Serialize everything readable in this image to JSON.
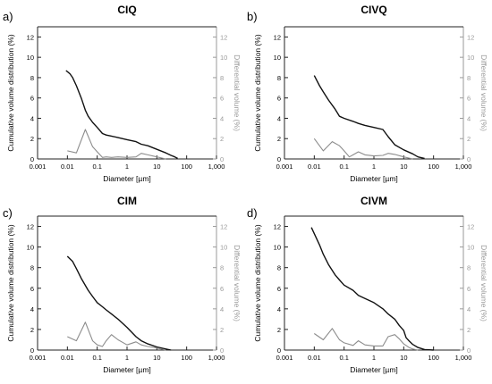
{
  "chart_data": [
    {
      "type": "line",
      "panel_letter": "a)",
      "title": "CIQ",
      "xlabel": "Diameter [µm]",
      "ylabel": "Cumulative volume distribution (%)",
      "y2label": "Differential volume (%)",
      "xscale": "log",
      "xlim": [
        0.001,
        1000
      ],
      "ylim": [
        0,
        13
      ],
      "y2lim": [
        0,
        13
      ],
      "xticks": [
        "0.001",
        "0.01",
        "0.1",
        "1",
        "10",
        "100",
        "1,000"
      ],
      "yticks": [
        "0",
        "2",
        "4",
        "6",
        "8",
        "10",
        "12"
      ],
      "y2ticks": [
        "0",
        "2",
        "4",
        "6",
        "8",
        "10",
        "12"
      ],
      "grid": false,
      "series": [
        {
          "axis": "left",
          "color": "#111111",
          "x": [
            0.009,
            0.012,
            0.015,
            0.02,
            0.03,
            0.04,
            0.05,
            0.07,
            0.1,
            0.15,
            0.2,
            0.3,
            0.5,
            1,
            2,
            3,
            5,
            10,
            20,
            30,
            40,
            50
          ],
          "y": [
            8.7,
            8.4,
            8.0,
            7.2,
            5.9,
            4.8,
            4.2,
            3.6,
            3.1,
            2.5,
            2.35,
            2.25,
            2.1,
            1.9,
            1.7,
            1.45,
            1.3,
            0.95,
            0.6,
            0.35,
            0.2,
            0.05
          ]
        },
        {
          "axis": "right",
          "color": "#8c8c8c",
          "x": [
            0.01,
            0.02,
            0.04,
            0.07,
            0.1,
            0.15,
            0.2,
            0.3,
            0.5,
            1,
            2,
            3,
            5,
            10,
            20
          ],
          "y": [
            0.8,
            0.6,
            2.9,
            1.2,
            0.7,
            0.15,
            0.2,
            0.15,
            0.2,
            0.15,
            0.2,
            0.55,
            0.4,
            0.2,
            0.0
          ]
        }
      ]
    },
    {
      "type": "line",
      "panel_letter": "b)",
      "title": "CIVQ",
      "xlabel": "Diameter [µm]",
      "ylabel": "Cumulative volume distribution (%)",
      "y2label": "Differential volume (%)",
      "xscale": "log",
      "xlim": [
        0.001,
        1000
      ],
      "ylim": [
        0,
        13
      ],
      "y2lim": [
        0,
        13
      ],
      "xticks": [
        "0.001",
        "0.01",
        "0.1",
        "1",
        "10",
        "100",
        "1,000"
      ],
      "yticks": [
        "0",
        "2",
        "4",
        "6",
        "8",
        "10",
        "12"
      ],
      "y2ticks": [
        "0",
        "2",
        "4",
        "6",
        "8",
        "10",
        "12"
      ],
      "grid": false,
      "series": [
        {
          "axis": "left",
          "color": "#111111",
          "x": [
            0.01,
            0.015,
            0.02,
            0.03,
            0.05,
            0.07,
            0.1,
            0.2,
            0.3,
            0.5,
            1,
            2,
            3,
            5,
            10,
            20,
            30,
            50
          ],
          "y": [
            8.2,
            7.2,
            6.6,
            5.8,
            4.9,
            4.2,
            4.0,
            3.7,
            3.5,
            3.3,
            3.1,
            2.9,
            2.2,
            1.4,
            0.9,
            0.5,
            0.2,
            0.05
          ]
        },
        {
          "axis": "right",
          "color": "#8c8c8c",
          "x": [
            0.01,
            0.02,
            0.04,
            0.07,
            0.1,
            0.15,
            0.2,
            0.3,
            0.5,
            1,
            2,
            3,
            5,
            10,
            20
          ],
          "y": [
            2.0,
            0.8,
            1.7,
            1.3,
            0.8,
            0.2,
            0.4,
            0.7,
            0.4,
            0.3,
            0.35,
            0.55,
            0.45,
            0.2,
            0.0
          ]
        }
      ]
    },
    {
      "type": "line",
      "panel_letter": "c)",
      "title": "CIM",
      "xlabel": "Diameter [µm]",
      "ylabel": "Cumulative volume distribution (%)",
      "y2label": "Differential volume (%)",
      "xscale": "log",
      "xlim": [
        0.001,
        1000
      ],
      "ylim": [
        0,
        13
      ],
      "y2lim": [
        0,
        13
      ],
      "xticks": [
        "0.001",
        "0.01",
        "0.1",
        "1",
        "10",
        "100",
        "1,000"
      ],
      "yticks": [
        "0",
        "2",
        "4",
        "6",
        "8",
        "10",
        "12"
      ],
      "y2ticks": [
        "0",
        "2",
        "4",
        "6",
        "8",
        "10",
        "12"
      ],
      "grid": false,
      "series": [
        {
          "axis": "left",
          "color": "#111111",
          "x": [
            0.01,
            0.015,
            0.02,
            0.03,
            0.05,
            0.07,
            0.1,
            0.15,
            0.2,
            0.3,
            0.5,
            1,
            2,
            3,
            5,
            10,
            20,
            30
          ],
          "y": [
            9.1,
            8.6,
            7.9,
            6.9,
            5.8,
            5.2,
            4.6,
            4.2,
            3.9,
            3.5,
            3.0,
            2.2,
            1.3,
            0.9,
            0.6,
            0.3,
            0.1,
            0.0
          ]
        },
        {
          "axis": "right",
          "color": "#8c8c8c",
          "x": [
            0.01,
            0.02,
            0.04,
            0.07,
            0.1,
            0.15,
            0.2,
            0.3,
            0.5,
            1,
            2,
            3,
            5,
            10,
            20
          ],
          "y": [
            1.3,
            0.9,
            2.7,
            0.9,
            0.5,
            0.35,
            0.9,
            1.5,
            1.0,
            0.5,
            0.8,
            0.5,
            0.35,
            0.2,
            0.0
          ]
        }
      ]
    },
    {
      "type": "line",
      "panel_letter": "d)",
      "title": "CIVM",
      "xlabel": "Diameter [µm]",
      "ylabel": "Cumulative volume distribution (%)",
      "y2label": "Differential volume (%)",
      "xscale": "log",
      "xlim": [
        0.001,
        1000
      ],
      "ylim": [
        0,
        13
      ],
      "y2lim": [
        0,
        13
      ],
      "xticks": [
        "0.001",
        "0.01",
        "0.1",
        "1",
        "10",
        "100",
        "1,000"
      ],
      "yticks": [
        "0",
        "2",
        "4",
        "6",
        "8",
        "10",
        "12"
      ],
      "y2ticks": [
        "0",
        "2",
        "4",
        "6",
        "8",
        "10",
        "12"
      ],
      "grid": false,
      "series": [
        {
          "axis": "left",
          "color": "#111111",
          "x": [
            0.008,
            0.01,
            0.015,
            0.02,
            0.03,
            0.05,
            0.07,
            0.1,
            0.2,
            0.3,
            0.5,
            1,
            2,
            3,
            5,
            7,
            10,
            12,
            15,
            20,
            30,
            50,
            100
          ],
          "y": [
            11.9,
            11.3,
            10.2,
            9.3,
            8.3,
            7.3,
            6.8,
            6.3,
            5.8,
            5.3,
            5.0,
            4.6,
            4.0,
            3.5,
            3.0,
            2.4,
            1.9,
            1.2,
            0.9,
            0.55,
            0.25,
            0.05,
            0.0
          ]
        },
        {
          "axis": "right",
          "color": "#8c8c8c",
          "x": [
            0.01,
            0.02,
            0.04,
            0.07,
            0.1,
            0.2,
            0.3,
            0.5,
            1,
            2,
            3,
            5,
            7,
            10,
            15,
            20,
            30
          ],
          "y": [
            1.6,
            1.0,
            2.1,
            1.0,
            0.7,
            0.45,
            0.9,
            0.5,
            0.4,
            0.4,
            1.3,
            1.5,
            1.1,
            0.6,
            0.25,
            0.1,
            0.0
          ]
        }
      ]
    }
  ]
}
